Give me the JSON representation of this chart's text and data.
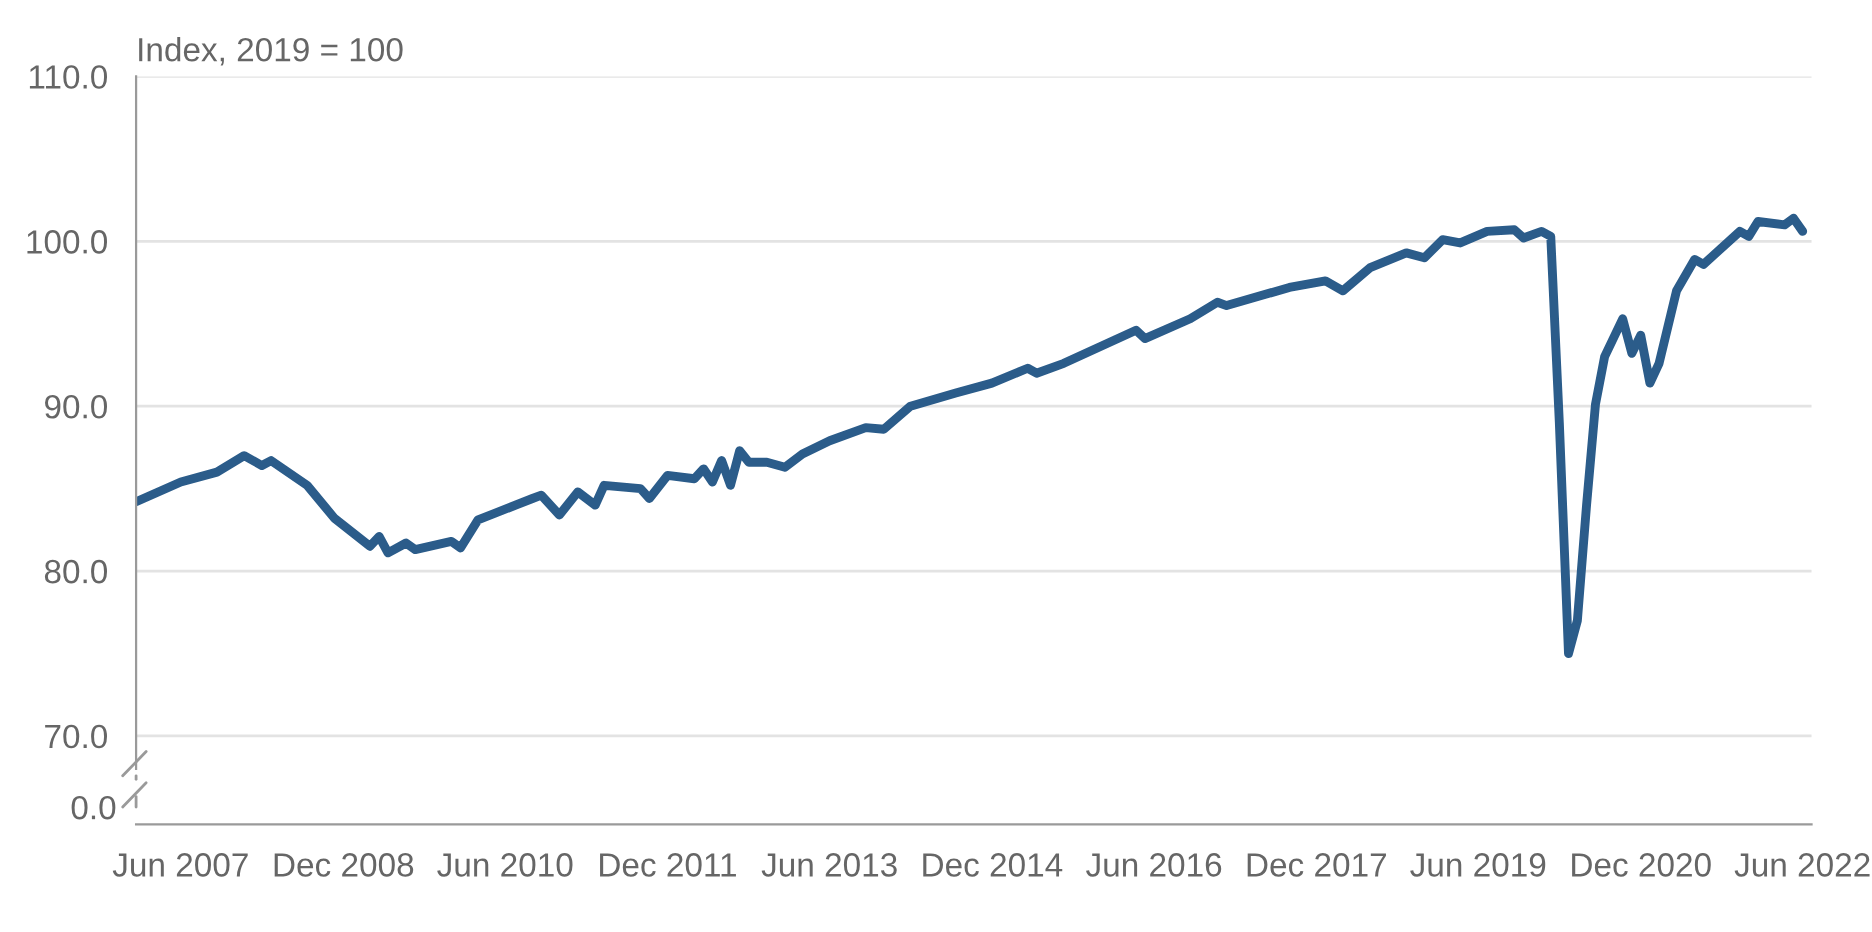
{
  "chart_data": {
    "type": "line",
    "ylabel": "Index, 2019 = 100",
    "xlim": [
      "2007-01",
      "2022-07"
    ],
    "ylim": [
      68,
      110
    ],
    "yticks": [
      {
        "value": 70,
        "label": "70.0"
      },
      {
        "value": 80,
        "label": "80.0"
      },
      {
        "value": 90,
        "label": "90.0"
      },
      {
        "value": 100,
        "label": "100.0"
      },
      {
        "value": 110,
        "label": "110.0"
      }
    ],
    "xticks": [
      {
        "value": "2007-06",
        "label": "Jun 2007"
      },
      {
        "value": "2008-12",
        "label": "Dec 2008"
      },
      {
        "value": "2010-06",
        "label": "Jun 2010"
      },
      {
        "value": "2011-12",
        "label": "Dec 2011"
      },
      {
        "value": "2013-06",
        "label": "Jun 2013"
      },
      {
        "value": "2014-12",
        "label": "Dec 2014"
      },
      {
        "value": "2016-06",
        "label": "Jun 2016"
      },
      {
        "value": "2017-12",
        "label": "Dec 2017"
      },
      {
        "value": "2019-06",
        "label": "Jun 2019"
      },
      {
        "value": "2020-12",
        "label": "Dec 2020"
      },
      {
        "value": "2022-06",
        "label": "Jun 2022"
      }
    ],
    "annotations": [
      "0.0"
    ],
    "grid": "y",
    "line_style": "solid",
    "series": [
      {
        "color": "#2b5c8a",
        "x": [
          "2007-01",
          "2007-06",
          "2007-10",
          "2008-01",
          "2008-03",
          "2008-04",
          "2008-08",
          "2008-11",
          "2009-03",
          "2009-04",
          "2009-05",
          "2009-07",
          "2009-08",
          "2009-12",
          "2010-01",
          "2010-03",
          "2010-09",
          "2010-10",
          "2010-12",
          "2011-02",
          "2011-04",
          "2011-05",
          "2011-09",
          "2011-10",
          "2011-12",
          "2012-03",
          "2012-04",
          "2012-05",
          "2012-06",
          "2012-07",
          "2012-08",
          "2012-09",
          "2012-11",
          "2013-01",
          "2013-03",
          "2013-06",
          "2013-10",
          "2013-12",
          "2014-03",
          "2014-08",
          "2014-12",
          "2015-04",
          "2015-05",
          "2015-08",
          "2016-04",
          "2016-05",
          "2016-10",
          "2017-01",
          "2017-02",
          "2017-09",
          "2018-01",
          "2018-03",
          "2018-06",
          "2018-10",
          "2018-12",
          "2019-02",
          "2019-04",
          "2019-07",
          "2019-10",
          "2019-11",
          "2020-01",
          "2020-02",
          "2020-03",
          "2020-04",
          "2020-05",
          "2020-06",
          "2020-07",
          "2020-08",
          "2020-10",
          "2020-11",
          "2020-12",
          "2021-01",
          "2021-02",
          "2021-04",
          "2021-06",
          "2021-07",
          "2021-11",
          "2021-12",
          "2022-01",
          "2022-04",
          "2022-05",
          "2022-06"
        ],
        "values": [
          84.2,
          85.4,
          86.0,
          87.0,
          86.4,
          86.7,
          85.2,
          83.2,
          81.5,
          82.1,
          81.1,
          81.7,
          81.3,
          81.8,
          81.4,
          83.1,
          84.4,
          84.6,
          83.4,
          84.8,
          84.0,
          85.2,
          85.0,
          84.4,
          85.8,
          85.6,
          86.2,
          85.4,
          86.7,
          85.2,
          87.3,
          86.6,
          86.6,
          86.3,
          87.1,
          87.9,
          88.7,
          88.6,
          90.0,
          90.8,
          91.4,
          92.3,
          92.0,
          92.6,
          94.6,
          94.1,
          95.3,
          96.3,
          96.1,
          97.2,
          97.6,
          97.0,
          98.4,
          99.3,
          99.0,
          100.1,
          99.9,
          100.6,
          100.7,
          100.2,
          100.6,
          100.3,
          89.0,
          75.0,
          77.0,
          84.0,
          90.1,
          93.0,
          95.3,
          93.2,
          94.3,
          91.4,
          92.6,
          97.0,
          98.9,
          98.6,
          100.6,
          100.3,
          101.2,
          101.0,
          101.4,
          100.6
        ]
      }
    ]
  }
}
